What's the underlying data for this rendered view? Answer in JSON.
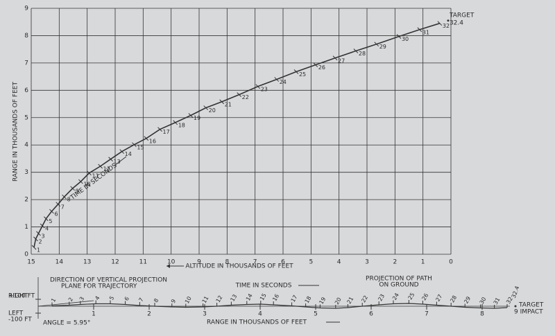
{
  "chart_data": [
    {
      "type": "line",
      "x_label": "ALTITUDE IN THOUSANDS OF FEET",
      "y_label": "RANGE IN THOUSANDS OF FEET",
      "annotation": "TIME IN SECONDS",
      "xlim": [
        15,
        0
      ],
      "xticks": [
        15,
        14,
        13,
        12,
        11,
        10,
        9,
        8,
        7,
        6,
        5,
        4,
        3,
        2,
        1,
        0
      ],
      "ylim": [
        0,
        9
      ],
      "yticks": [
        0,
        1,
        2,
        3,
        4,
        5,
        6,
        7,
        8,
        9
      ],
      "grid": true,
      "color": "#333333",
      "x": [
        14.9,
        14.84,
        14.74,
        14.6,
        14.47,
        14.27,
        14.04,
        13.82,
        13.52,
        13.23,
        12.93,
        12.53,
        12.16,
        11.76,
        11.32,
        10.89,
        10.4,
        9.85,
        9.3,
        8.76,
        8.19,
        7.57,
        6.9,
        6.23,
        5.53,
        4.84,
        4.14,
        3.4,
        2.66,
        1.86,
        1.12,
        0.4
      ],
      "values": [
        0.25,
        0.56,
        0.76,
        1.04,
        1.3,
        1.57,
        1.83,
        2.1,
        2.41,
        2.66,
        2.97,
        3.22,
        3.48,
        3.76,
        4.01,
        4.24,
        4.57,
        4.82,
        5.08,
        5.36,
        5.58,
        5.84,
        6.14,
        6.4,
        6.68,
        6.93,
        7.18,
        7.44,
        7.69,
        7.97,
        8.22,
        8.45
      ],
      "point_labels": [
        1,
        2,
        3,
        4,
        5,
        6,
        7,
        8,
        9,
        10,
        11,
        12,
        13,
        14,
        15,
        16,
        17,
        18,
        19,
        20,
        21,
        22,
        23,
        24,
        25,
        26,
        27,
        28,
        29,
        30,
        31,
        32
      ],
      "target": {
        "label": "TARGET",
        "time": 32.4,
        "x": 0.1,
        "y": 8.55
      }
    },
    {
      "type": "line",
      "title": [
        "PROJECTION OF PATH",
        "ON GROUND"
      ],
      "x_label": "RANGE IN THOUSANDS OF FEET",
      "direction_note": [
        "DIRECTION OF VERTICAL PROJECTION",
        "PLANE FOR TRAJECTORY"
      ],
      "time_note": "TIME IN SECONDS",
      "angle_note": "ANGLE = 5.95°",
      "side_labels": [
        "RIGHT",
        "LEFT"
      ],
      "xlim": [
        0,
        9
      ],
      "xticks": [
        1,
        2,
        3,
        4,
        5,
        6,
        7,
        8
      ],
      "ylim": [
        -100,
        100
      ],
      "yticks": [
        {
          "value": 100,
          "label": "+100 FT"
        },
        {
          "value": -100,
          "label": "-100 FT"
        }
      ],
      "color": "#333333",
      "x": [
        0.25,
        0.56,
        0.76,
        1.04,
        1.3,
        1.57,
        1.83,
        2.1,
        2.41,
        2.66,
        2.97,
        3.22,
        3.48,
        3.76,
        4.01,
        4.24,
        4.57,
        4.82,
        5.08,
        5.36,
        5.58,
        5.84,
        6.14,
        6.4,
        6.68,
        6.93,
        7.18,
        7.44,
        7.69,
        7.97,
        8.22,
        8.45
      ],
      "values": [
        5,
        15,
        25,
        35,
        35,
        25,
        10,
        0,
        -10,
        -15,
        -10,
        0,
        15,
        25,
        30,
        20,
        5,
        -10,
        -25,
        -30,
        -20,
        0,
        20,
        35,
        40,
        30,
        15,
        0,
        -15,
        -25,
        -30,
        -20
      ],
      "point_labels": [
        1,
        2,
        3,
        4,
        5,
        6,
        7,
        8,
        9,
        10,
        11,
        12,
        13,
        14,
        15,
        16,
        17,
        18,
        19,
        20,
        21,
        22,
        23,
        24,
        25,
        26,
        27,
        28,
        29,
        30,
        31,
        32
      ],
      "target": {
        "label": "TARGET",
        "time": 32.4,
        "impact": "9 IMPACT",
        "x": 8.6,
        "y": 0
      }
    }
  ]
}
